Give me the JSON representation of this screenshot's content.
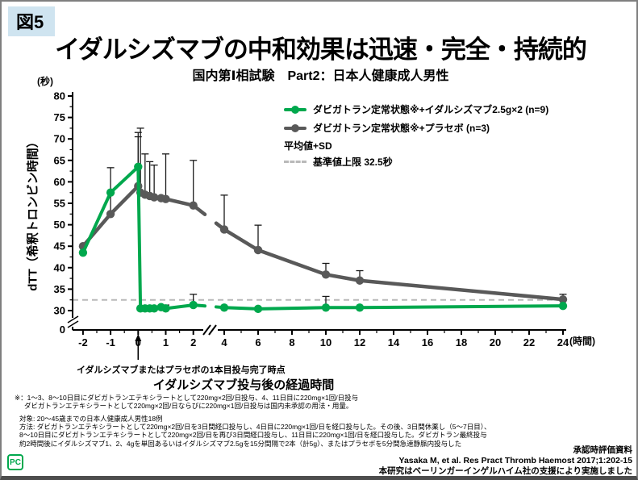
{
  "slide": {
    "figure_label": "図5",
    "title": "イダルシズマブの中和効果は迅速・完全・持続的",
    "subtitle": "国内第Ⅰ相試験　Part2：日本人健康成人男性"
  },
  "chart_data": {
    "type": "line",
    "xlabel": "イダルシズマブ投与後の経過時間",
    "x_unit": "(時間)",
    "ylabel": "dTT（希釈トロンビン時間）",
    "y_unit": "(秒)",
    "ylim": [
      30,
      80
    ],
    "y_axis_break": true,
    "x_axis_break_between": [
      2,
      4
    ],
    "y_ticks_major": [
      30,
      35,
      40,
      45,
      50,
      55,
      60,
      65,
      70,
      75,
      80
    ],
    "y_origin_label": "0",
    "x_ticks_major": [
      -2,
      -1,
      0,
      1,
      2,
      4,
      6,
      8,
      10,
      12,
      14,
      16,
      18,
      20,
      22,
      24
    ],
    "grid": false,
    "legend_position": "top-inside",
    "stat_note": "平均値+SD",
    "reference_line": {
      "value": 32.5,
      "label": "基準値上限 32.5秒",
      "color": "#b9b9b9"
    },
    "annotation_at_zero": "イダルシズマブまたはプラセボの1本目投与完了時点",
    "series": [
      {
        "name": "ダビガトラン定常状態※+イダルシズマブ2.5g×2 (n=9)",
        "color": "#00a84d",
        "points": [
          {
            "t": -2,
            "mean": 43.5,
            "sd": 0
          },
          {
            "t": -1,
            "mean": 57.5,
            "sd": 0
          },
          {
            "t": 0,
            "mean": 63.5,
            "sd": 8
          },
          {
            "t": 0.083,
            "mean": 30.5,
            "sd": 0
          },
          {
            "t": 0.25,
            "mean": 30.5,
            "sd": 0
          },
          {
            "t": 0.42,
            "mean": 30.5,
            "sd": 0
          },
          {
            "t": 0.58,
            "mean": 30.5,
            "sd": 0
          },
          {
            "t": 0.83,
            "mean": 30.8,
            "sd": 0
          },
          {
            "t": 1,
            "mean": 30.5,
            "sd": 0.8
          },
          {
            "t": 2,
            "mean": 31.3,
            "sd": 2.5
          },
          {
            "t": 4,
            "mean": 30.7,
            "sd": 0
          },
          {
            "t": 6,
            "mean": 30.4,
            "sd": 0
          },
          {
            "t": 10,
            "mean": 30.7,
            "sd": 2.6
          },
          {
            "t": 12,
            "mean": 30.7,
            "sd": 0
          },
          {
            "t": 24,
            "mean": 31.1,
            "sd": 0
          }
        ]
      },
      {
        "name": "ダビガトラン定常状態※+プラセボ (n=3)",
        "color": "#595959",
        "points": [
          {
            "t": -2,
            "mean": 45,
            "sd": 0
          },
          {
            "t": -1,
            "mean": 52.5,
            "sd": 10.8
          },
          {
            "t": 0,
            "mean": 59,
            "sd": 11.5
          },
          {
            "t": 0.083,
            "mean": 57.5,
            "sd": 15
          },
          {
            "t": 0.25,
            "mean": 57,
            "sd": 9.5
          },
          {
            "t": 0.42,
            "mean": 56.7,
            "sd": 8
          },
          {
            "t": 0.58,
            "mean": 56.4,
            "sd": 7.5
          },
          {
            "t": 0.83,
            "mean": 56.2,
            "sd": 0
          },
          {
            "t": 1,
            "mean": 56,
            "sd": 10.5
          },
          {
            "t": 2,
            "mean": 54.5,
            "sd": 10.5
          },
          {
            "t": 4,
            "mean": 48.9,
            "sd": 8
          },
          {
            "t": 6,
            "mean": 44.1,
            "sd": 5.8
          },
          {
            "t": 10,
            "mean": 38.4,
            "sd": 2.6
          },
          {
            "t": 12,
            "mean": 37,
            "sd": 2.3
          },
          {
            "t": 24,
            "mean": 32.6,
            "sd": 1.2
          }
        ]
      }
    ]
  },
  "footnotes": [
    "※：1～3、8～10日目にダビガトランエテキシラートとして220mg×2回/日投与、4、11日目に220mg×1回/日投与",
    "ダビガトランエテキシラートとして220mg×2回/日ならびに220mg×1回/日投与は国内未承認の用法・用量。",
    "対象: 20～45歳までの日本人健康成人男性18例",
    "方法: ダビガトランエテキシラートとして220mg×2回/日を3日間経口投与し、4日目に220mg×1回/日を経口投与した。その後、3日間休薬し（5～7日目）、",
    "8～10日目にダビガトランエテキシラートとして220mg×2回/日を再び3日間経口投与し、11日目に220mg×1回/日を経口投与した。ダビガトラン最終投与",
    "約2時間後にイダルシズマブ1、2、4gを単回あるいはイダルシズマブ2.5gを15分間隔で2本（計5g）、またはプラセボを5分間急速静脈内投与した"
  ],
  "credits": [
    "承認時評価資料",
    "Yasaka M, et al. Res Pract Thromb Haemost 2017;1:202-15",
    "本研究はベーリンガーインゲルハイム社の支援により実施しました"
  ],
  "logo_text": "PC"
}
